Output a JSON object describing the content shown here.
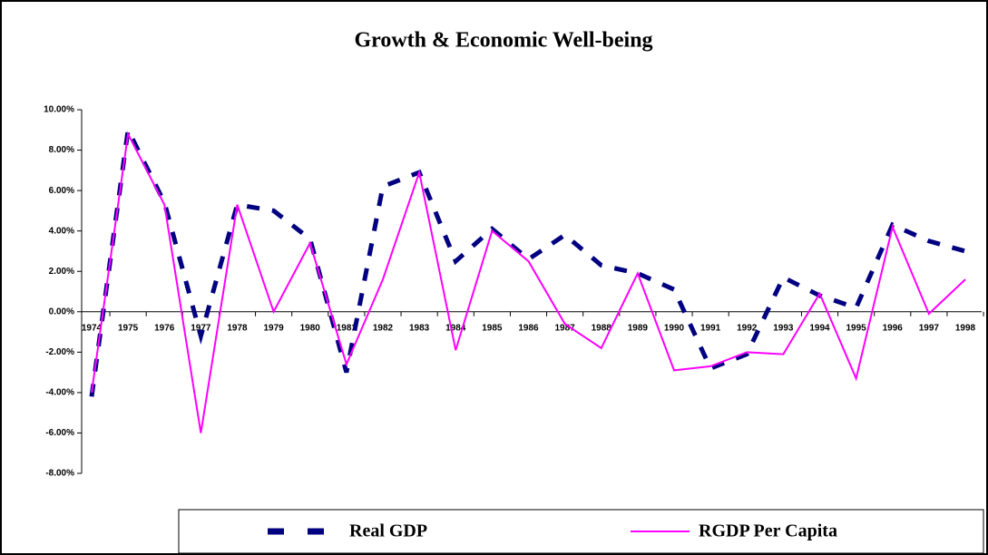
{
  "chart_data": {
    "type": "line",
    "title": "Growth & Economic Well-being",
    "categories": [
      "1974",
      "1975",
      "1976",
      "1977",
      "1978",
      "1979",
      "1980",
      "1981",
      "1982",
      "1983",
      "1984",
      "1985",
      "1986",
      "1987",
      "1988",
      "1989",
      "1990",
      "1991",
      "1992",
      "1993",
      "1994",
      "1995",
      "1996",
      "1997",
      "1998"
    ],
    "series": [
      {
        "name": "Real GDP",
        "color": "#000080",
        "style": "dashed",
        "values": [
          -4.2,
          9.0,
          5.4,
          -1.2,
          5.3,
          5.0,
          3.6,
          -3.0,
          6.2,
          6.9,
          2.5,
          4.1,
          2.6,
          3.8,
          2.3,
          1.9,
          1.1,
          -2.8,
          -2.1,
          1.7,
          0.8,
          0.2,
          4.3,
          3.5,
          3.0
        ]
      },
      {
        "name": "RGDP Per Capita",
        "color": "#ff00ff",
        "style": "solid",
        "values": [
          -4.0,
          8.8,
          5.3,
          -6.0,
          5.3,
          0.0,
          3.4,
          -2.6,
          1.6,
          6.9,
          -1.9,
          4.0,
          2.5,
          -0.6,
          -1.8,
          1.9,
          -2.9,
          -2.7,
          -2.0,
          -2.1,
          0.9,
          -3.3,
          4.2,
          -0.1,
          1.6
        ]
      }
    ],
    "ylim": [
      -8,
      10
    ],
    "yticks": [
      {
        "value": -8,
        "label": "-8.00%"
      },
      {
        "value": -6,
        "label": "-6.00%"
      },
      {
        "value": -4,
        "label": "-4.00%"
      },
      {
        "value": -2,
        "label": "-2.00%"
      },
      {
        "value": 0,
        "label": "0.00%"
      },
      {
        "value": 2,
        "label": "2.00%"
      },
      {
        "value": 4,
        "label": "4.00%"
      },
      {
        "value": 6,
        "label": "6.00%"
      },
      {
        "value": 8,
        "label": "8.00%"
      },
      {
        "value": 10,
        "label": "10.00%"
      }
    ],
    "grid": false,
    "legend": "bottom"
  }
}
